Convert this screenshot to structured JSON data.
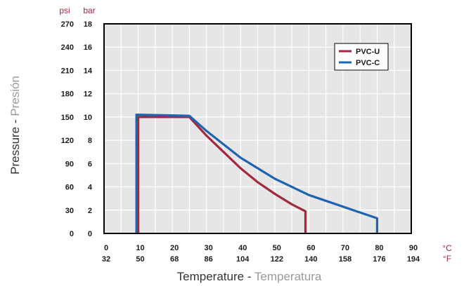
{
  "chart_data": {
    "type": "line",
    "xlabel": {
      "en": "Temperature",
      "sep": " - ",
      "es": "Temperatura"
    },
    "ylabel": {
      "en": "Pressure",
      "sep": " - ",
      "es": "Presión"
    },
    "x_unit_primary": "°C",
    "x_unit_secondary": "°F",
    "y_unit_primary": "bar",
    "y_unit_secondary": "psi",
    "xlim": [
      0,
      90
    ],
    "ylim": [
      0,
      18
    ],
    "x_ticks_c": [
      "0",
      "10",
      "20",
      "30",
      "40",
      "50",
      "60",
      "70",
      "80",
      "90"
    ],
    "x_ticks_f": [
      "32",
      "50",
      "68",
      "86",
      "104",
      "122",
      "140",
      "158",
      "176",
      "194"
    ],
    "x_tick_values": [
      0,
      10,
      20,
      30,
      40,
      50,
      60,
      70,
      80,
      90
    ],
    "y_ticks_bar": [
      "0",
      "2",
      "4",
      "6",
      "8",
      "10",
      "12",
      "14",
      "16",
      "18"
    ],
    "y_ticks_psi": [
      "0",
      "30",
      "60",
      "90",
      "120",
      "150",
      "180",
      "210",
      "240",
      "270"
    ],
    "y_tick_values": [
      0,
      2,
      4,
      6,
      8,
      10,
      12,
      14,
      16,
      18
    ],
    "grid": true,
    "legend_position": "top-right",
    "series": [
      {
        "name": "PVC-U",
        "color": "#a3283c",
        "x": [
          10,
          10,
          25,
          30,
          35,
          40,
          45,
          50,
          55,
          59,
          59
        ],
        "y": [
          0,
          10,
          10,
          8.4,
          7.0,
          5.6,
          4.4,
          3.4,
          2.5,
          1.9,
          0
        ]
      },
      {
        "name": "PVC-C",
        "color": "#1e64b0",
        "x": [
          9.5,
          9.5,
          25,
          30,
          40,
          50,
          60,
          70,
          80,
          80
        ],
        "y": [
          0,
          10.2,
          10.1,
          8.8,
          6.5,
          4.7,
          3.3,
          2.3,
          1.3,
          0
        ]
      }
    ]
  }
}
